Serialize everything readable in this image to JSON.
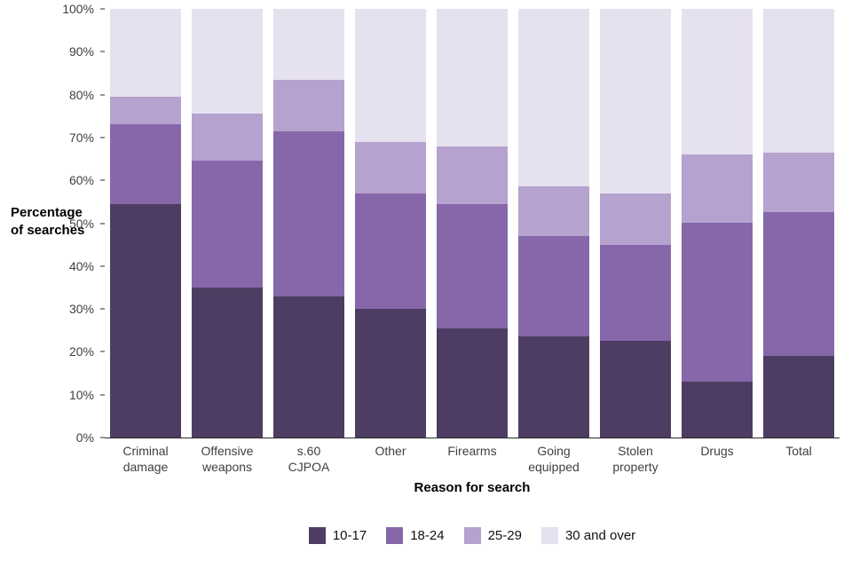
{
  "chart_data": {
    "type": "bar",
    "stacked": true,
    "percent_stacked": true,
    "title": "",
    "xlabel": "Reason for search",
    "ylabel": "Percentage of searches",
    "ylim": [
      0,
      100
    ],
    "grid": false,
    "legend_position": "bottom",
    "y_ticks": [
      "0%",
      "10%",
      "20%",
      "30%",
      "40%",
      "50%",
      "60%",
      "70%",
      "80%",
      "90%",
      "100%"
    ],
    "categories": [
      "Criminal damage",
      "Offensive weapons",
      "s.60 CJPOA",
      "Other",
      "Firearms",
      "Going equipped",
      "Stolen property",
      "Drugs",
      "Total"
    ],
    "x_tick_labels": [
      "Criminal\ndamage",
      "Offensive\nweapons",
      "s.60\nCJPOA",
      "Other",
      "Firearms",
      "Going\nequipped",
      "Stolen\nproperty",
      "Drugs",
      "Total"
    ],
    "series": [
      {
        "name": "10-17",
        "color": "#4e3d63",
        "values": [
          54.5,
          35.0,
          33.0,
          30.0,
          25.5,
          23.5,
          22.5,
          13.0,
          19.0
        ]
      },
      {
        "name": "18-24",
        "color": "#8668aa",
        "values": [
          18.5,
          29.5,
          38.5,
          27.0,
          29.0,
          23.5,
          22.5,
          37.0,
          33.5
        ]
      },
      {
        "name": "25-29",
        "color": "#b5a2ce",
        "values": [
          6.5,
          11.0,
          12.0,
          12.0,
          13.5,
          11.5,
          12.0,
          16.0,
          14.0
        ]
      },
      {
        "name": "30 and over",
        "color": "#e6e1ef",
        "values": [
          20.5,
          24.5,
          16.5,
          31.0,
          32.0,
          41.5,
          43.0,
          34.0,
          33.5
        ]
      }
    ]
  }
}
